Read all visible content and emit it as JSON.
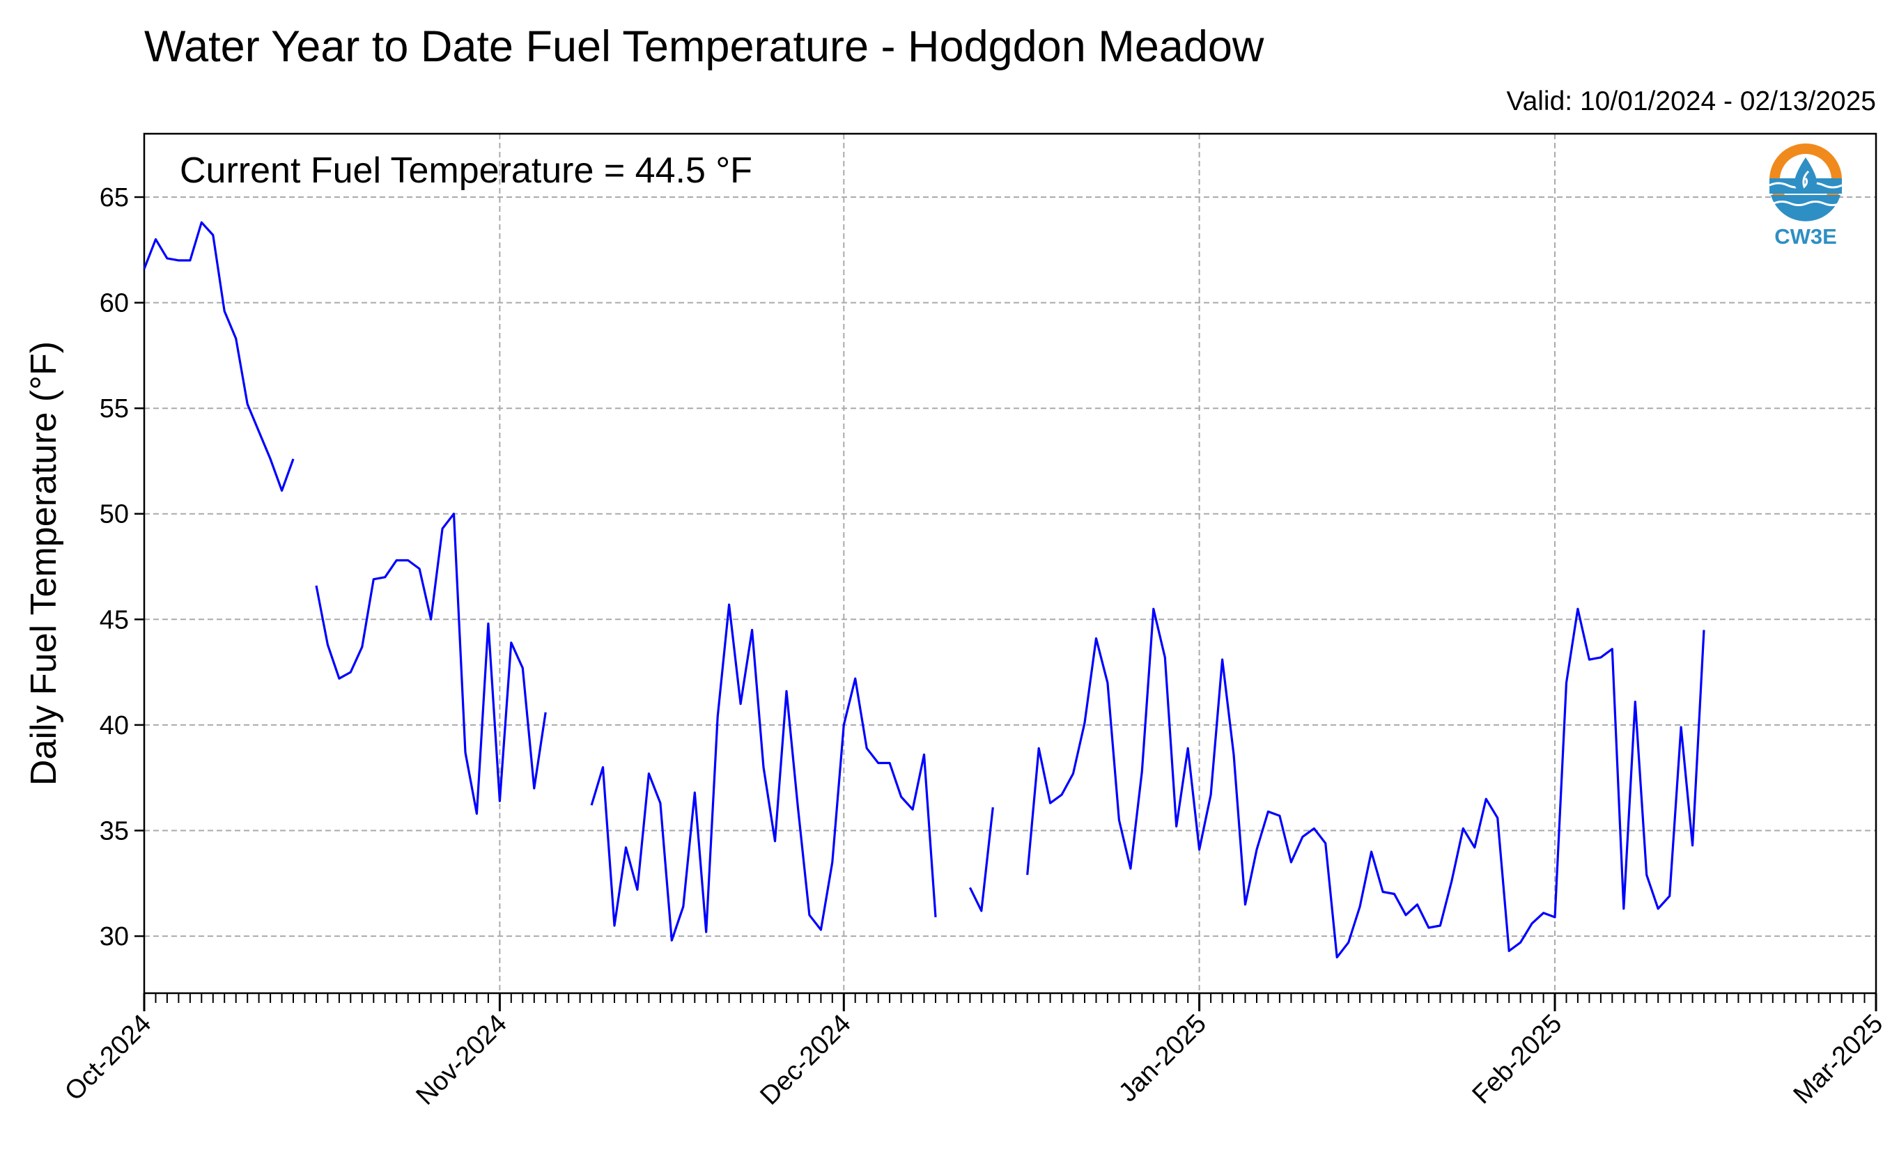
{
  "chart_data": {
    "type": "line",
    "title": "Water Year to Date Fuel Temperature - Hodgdon Meadow",
    "subtitle": "Valid: 10/01/2024 - 02/13/2025",
    "annotation": "Current Fuel Temperature = 44.5 °F",
    "xlabel": "",
    "ylabel": "Daily Fuel Temperature (°F)",
    "xlim": [
      "2024-10-01",
      "2025-03-01"
    ],
    "ylim": [
      27.3,
      68.0
    ],
    "grid": true,
    "x_ticks": [
      {
        "date": "2024-10-01",
        "label": "Oct-2024"
      },
      {
        "date": "2024-11-01",
        "label": "Nov-2024"
      },
      {
        "date": "2024-12-01",
        "label": "Dec-2024"
      },
      {
        "date": "2025-01-01",
        "label": "Jan-2025"
      },
      {
        "date": "2025-02-01",
        "label": "Feb-2025"
      },
      {
        "date": "2025-03-01",
        "label": "Mar-2025"
      }
    ],
    "y_ticks": [
      30,
      35,
      40,
      45,
      50,
      55,
      60,
      65
    ],
    "series": [
      {
        "color": "#0000ff",
        "start_date": "2024-10-01",
        "values": [
          61.6,
          63.0,
          62.1,
          62.0,
          62.0,
          63.8,
          63.2,
          59.6,
          58.3,
          55.2,
          53.9,
          52.6,
          51.1,
          52.6,
          null,
          46.6,
          43.8,
          42.2,
          42.5,
          43.7,
          46.9,
          47.0,
          47.8,
          47.8,
          47.4,
          45.0,
          49.3,
          50.0,
          38.7,
          35.8,
          44.8,
          36.4,
          43.9,
          42.7,
          37.0,
          40.6,
          null,
          null,
          null,
          36.2,
          38.0,
          30.5,
          34.2,
          32.2,
          37.7,
          36.3,
          29.8,
          31.4,
          36.8,
          30.2,
          40.4,
          45.7,
          41.0,
          44.5,
          38.0,
          34.5,
          41.6,
          36.1,
          31.0,
          30.3,
          33.5,
          40.0,
          42.2,
          38.9,
          38.2,
          38.2,
          36.6,
          36.0,
          38.6,
          30.9,
          null,
          null,
          32.3,
          31.2,
          36.1,
          null,
          null,
          32.9,
          38.9,
          36.3,
          36.7,
          37.7,
          40.1,
          44.1,
          42.0,
          35.5,
          33.2,
          37.8,
          45.5,
          43.2,
          35.2,
          38.9,
          34.1,
          36.7,
          43.1,
          38.6,
          31.5,
          34.1,
          35.9,
          35.7,
          33.5,
          34.7,
          35.1,
          34.4,
          29.0,
          29.7,
          31.4,
          34.0,
          32.1,
          32.0,
          31.0,
          31.5,
          30.4,
          30.5,
          32.6,
          35.1,
          34.2,
          36.5,
          35.6,
          29.3,
          29.7,
          30.6,
          31.1,
          30.9,
          42.0,
          45.5,
          43.1,
          43.2,
          43.6,
          31.3,
          41.1,
          32.9,
          31.3,
          31.9,
          39.9,
          34.3,
          44.5
        ]
      }
    ]
  },
  "logo": {
    "text": "CW3E"
  }
}
